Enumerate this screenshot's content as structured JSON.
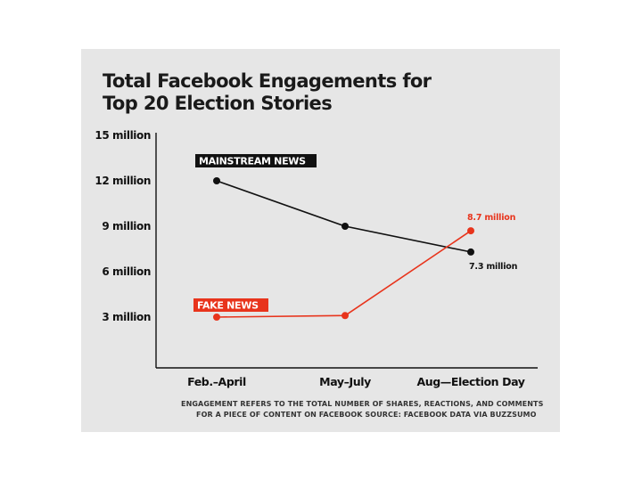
{
  "chart_data": {
    "type": "line",
    "title_lines": [
      "Total Facebook Engagements for",
      "Top 20 Election Stories"
    ],
    "categories": [
      "Feb.–April",
      "May–July",
      "Aug—Election Day"
    ],
    "y_ticks": [
      "15 million",
      "12 million",
      "9 million",
      "6 million",
      "3 million"
    ],
    "y_tick_values": [
      15,
      12,
      9,
      6,
      3
    ],
    "ylim": [
      0,
      15
    ],
    "series": [
      {
        "name": "MAINSTREAM NEWS",
        "values": [
          12,
          9,
          7.3
        ],
        "color": "#111111",
        "end_label": "7.3 million"
      },
      {
        "name": "FAKE NEWS",
        "values": [
          3,
          3.1,
          8.7
        ],
        "color": "#e8341c",
        "end_label": "8.7 million"
      }
    ],
    "footnote_lines": [
      "ENGAGEMENT REFERS TO THE TOTAL NUMBER OF SHARES, REACTIONS, AND COMMENTS",
      "FOR A PIECE OF CONTENT ON FACEBOOK SOURCE: FACEBOOK DATA VIA BUZZSUMO"
    ]
  }
}
